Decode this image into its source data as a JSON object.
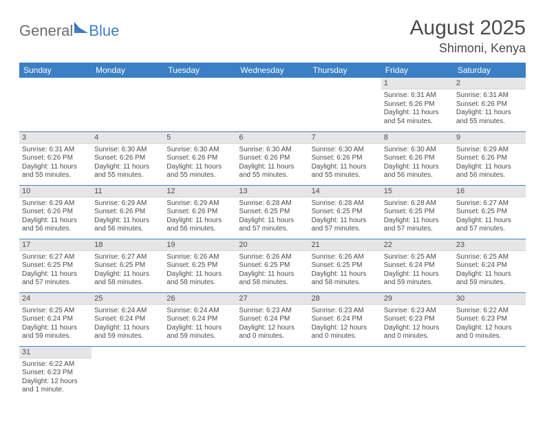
{
  "logo": {
    "text1": "General",
    "text2": "Blue"
  },
  "title": "August 2025",
  "location": "Shimoni, Kenya",
  "colors": {
    "header_bg": "#3b7fc4",
    "header_text": "#ffffff",
    "daynum_bg": "#e6e6e6",
    "border": "#3b7fc4",
    "text": "#4a4a4a",
    "logo_gray": "#6b6b6b",
    "logo_accent": "#3b7fc4"
  },
  "weekdays": [
    "Sunday",
    "Monday",
    "Tuesday",
    "Wednesday",
    "Thursday",
    "Friday",
    "Saturday"
  ],
  "weeks": [
    [
      null,
      null,
      null,
      null,
      null,
      {
        "n": "1",
        "sr": "Sunrise: 6:31 AM",
        "ss": "Sunset: 6:26 PM",
        "dl": "Daylight: 11 hours and 54 minutes."
      },
      {
        "n": "2",
        "sr": "Sunrise: 6:31 AM",
        "ss": "Sunset: 6:26 PM",
        "dl": "Daylight: 11 hours and 55 minutes."
      }
    ],
    [
      {
        "n": "3",
        "sr": "Sunrise: 6:31 AM",
        "ss": "Sunset: 6:26 PM",
        "dl": "Daylight: 11 hours and 55 minutes."
      },
      {
        "n": "4",
        "sr": "Sunrise: 6:30 AM",
        "ss": "Sunset: 6:26 PM",
        "dl": "Daylight: 11 hours and 55 minutes."
      },
      {
        "n": "5",
        "sr": "Sunrise: 6:30 AM",
        "ss": "Sunset: 6:26 PM",
        "dl": "Daylight: 11 hours and 55 minutes."
      },
      {
        "n": "6",
        "sr": "Sunrise: 6:30 AM",
        "ss": "Sunset: 6:26 PM",
        "dl": "Daylight: 11 hours and 55 minutes."
      },
      {
        "n": "7",
        "sr": "Sunrise: 6:30 AM",
        "ss": "Sunset: 6:26 PM",
        "dl": "Daylight: 11 hours and 55 minutes."
      },
      {
        "n": "8",
        "sr": "Sunrise: 6:30 AM",
        "ss": "Sunset: 6:26 PM",
        "dl": "Daylight: 11 hours and 56 minutes."
      },
      {
        "n": "9",
        "sr": "Sunrise: 6:29 AM",
        "ss": "Sunset: 6:26 PM",
        "dl": "Daylight: 11 hours and 56 minutes."
      }
    ],
    [
      {
        "n": "10",
        "sr": "Sunrise: 6:29 AM",
        "ss": "Sunset: 6:26 PM",
        "dl": "Daylight: 11 hours and 56 minutes."
      },
      {
        "n": "11",
        "sr": "Sunrise: 6:29 AM",
        "ss": "Sunset: 6:26 PM",
        "dl": "Daylight: 11 hours and 56 minutes."
      },
      {
        "n": "12",
        "sr": "Sunrise: 6:29 AM",
        "ss": "Sunset: 6:26 PM",
        "dl": "Daylight: 11 hours and 56 minutes."
      },
      {
        "n": "13",
        "sr": "Sunrise: 6:28 AM",
        "ss": "Sunset: 6:25 PM",
        "dl": "Daylight: 11 hours and 57 minutes."
      },
      {
        "n": "14",
        "sr": "Sunrise: 6:28 AM",
        "ss": "Sunset: 6:25 PM",
        "dl": "Daylight: 11 hours and 57 minutes."
      },
      {
        "n": "15",
        "sr": "Sunrise: 6:28 AM",
        "ss": "Sunset: 6:25 PM",
        "dl": "Daylight: 11 hours and 57 minutes."
      },
      {
        "n": "16",
        "sr": "Sunrise: 6:27 AM",
        "ss": "Sunset: 6:25 PM",
        "dl": "Daylight: 11 hours and 57 minutes."
      }
    ],
    [
      {
        "n": "17",
        "sr": "Sunrise: 6:27 AM",
        "ss": "Sunset: 6:25 PM",
        "dl": "Daylight: 11 hours and 57 minutes."
      },
      {
        "n": "18",
        "sr": "Sunrise: 6:27 AM",
        "ss": "Sunset: 6:25 PM",
        "dl": "Daylight: 11 hours and 58 minutes."
      },
      {
        "n": "19",
        "sr": "Sunrise: 6:26 AM",
        "ss": "Sunset: 6:25 PM",
        "dl": "Daylight: 11 hours and 58 minutes."
      },
      {
        "n": "20",
        "sr": "Sunrise: 6:26 AM",
        "ss": "Sunset: 6:25 PM",
        "dl": "Daylight: 11 hours and 58 minutes."
      },
      {
        "n": "21",
        "sr": "Sunrise: 6:26 AM",
        "ss": "Sunset: 6:25 PM",
        "dl": "Daylight: 11 hours and 58 minutes."
      },
      {
        "n": "22",
        "sr": "Sunrise: 6:25 AM",
        "ss": "Sunset: 6:24 PM",
        "dl": "Daylight: 11 hours and 59 minutes."
      },
      {
        "n": "23",
        "sr": "Sunrise: 6:25 AM",
        "ss": "Sunset: 6:24 PM",
        "dl": "Daylight: 11 hours and 59 minutes."
      }
    ],
    [
      {
        "n": "24",
        "sr": "Sunrise: 6:25 AM",
        "ss": "Sunset: 6:24 PM",
        "dl": "Daylight: 11 hours and 59 minutes."
      },
      {
        "n": "25",
        "sr": "Sunrise: 6:24 AM",
        "ss": "Sunset: 6:24 PM",
        "dl": "Daylight: 11 hours and 59 minutes."
      },
      {
        "n": "26",
        "sr": "Sunrise: 6:24 AM",
        "ss": "Sunset: 6:24 PM",
        "dl": "Daylight: 11 hours and 59 minutes."
      },
      {
        "n": "27",
        "sr": "Sunrise: 6:23 AM",
        "ss": "Sunset: 6:24 PM",
        "dl": "Daylight: 12 hours and 0 minutes."
      },
      {
        "n": "28",
        "sr": "Sunrise: 6:23 AM",
        "ss": "Sunset: 6:24 PM",
        "dl": "Daylight: 12 hours and 0 minutes."
      },
      {
        "n": "29",
        "sr": "Sunrise: 6:23 AM",
        "ss": "Sunset: 6:23 PM",
        "dl": "Daylight: 12 hours and 0 minutes."
      },
      {
        "n": "30",
        "sr": "Sunrise: 6:22 AM",
        "ss": "Sunset: 6:23 PM",
        "dl": "Daylight: 12 hours and 0 minutes."
      }
    ],
    [
      {
        "n": "31",
        "sr": "Sunrise: 6:22 AM",
        "ss": "Sunset: 6:23 PM",
        "dl": "Daylight: 12 hours and 1 minute."
      },
      null,
      null,
      null,
      null,
      null,
      null
    ]
  ]
}
